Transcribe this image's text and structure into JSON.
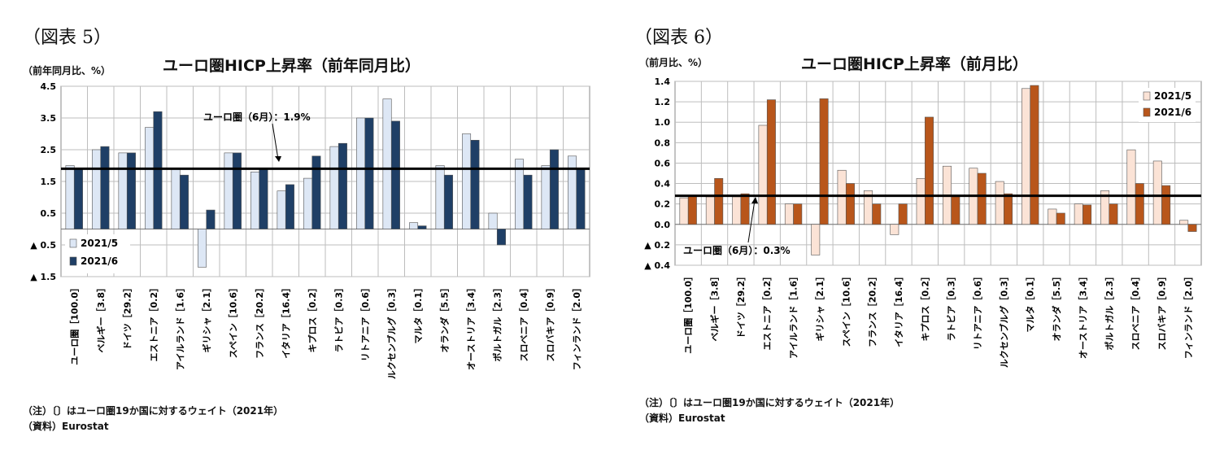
{
  "panels": [
    {
      "label": "（図表 5）",
      "unit": "（前年同月比、%）",
      "note1": "（注）〔〕はユーロ圏19か国に対するウェイト（2021年）",
      "note2": "（資料）Eurostat"
    },
    {
      "label": "（図表 6）",
      "unit": "（前月比、%）",
      "note1": "（注）〔〕はユーロ圏19か国に対するウェイト（2021年）",
      "note2": "（資料）Eurostat"
    }
  ],
  "chart_data": [
    {
      "type": "bar",
      "title": "ユーロ圏HICP上昇率（前年同月比）",
      "ylim": [
        -1.5,
        4.5
      ],
      "yticks": [
        4.5,
        3.5,
        2.5,
        1.5,
        0.5,
        -0.5,
        -1.5
      ],
      "ytick_labels": [
        "4.5",
        "3.5",
        "2.5",
        "1.5",
        "0.5",
        "▲ 0.5",
        "▲ 1.5"
      ],
      "grid": true,
      "legend_position": "bottom-left",
      "categories": [
        "ユーロ圏［100.0］",
        "ベルギー［3.8］",
        "ドイツ［29.2］",
        "エストニア［0.2］",
        "アイルランド［1.6］",
        "ギリシャ［2.1］",
        "スペイン［10.6］",
        "フランス［20.2］",
        "イタリア［16.4］",
        "キプロス［0.2］",
        "ラトビア［0.3］",
        "リトアニア［0.6］",
        "ルクセンブルグ［0.3］",
        "マルタ［0.1］",
        "オランダ［5.5］",
        "オーストリア［3.4］",
        "ポルトガル［2.3］",
        "スロベニア［0.4］",
        "スロバキア［0.9］",
        "フィンランド［2.0］"
      ],
      "series": [
        {
          "name": "2021/5",
          "color": "#dde7f5",
          "values": [
            2.0,
            2.5,
            2.4,
            3.2,
            1.9,
            -1.2,
            2.4,
            1.8,
            1.2,
            1.6,
            2.6,
            3.5,
            4.1,
            0.2,
            2.0,
            3.0,
            0.5,
            2.2,
            2.0,
            2.3
          ]
        },
        {
          "name": "2021/6",
          "color": "#1f3f66",
          "values": [
            1.9,
            2.6,
            2.4,
            3.7,
            1.7,
            0.6,
            2.4,
            1.9,
            1.4,
            2.3,
            2.7,
            3.5,
            3.4,
            0.1,
            1.7,
            2.8,
            -0.5,
            1.7,
            2.5,
            1.9
          ]
        }
      ],
      "reference": {
        "value": 1.9,
        "label": "ユーロ圏（6月）：1.9%"
      }
    },
    {
      "type": "bar",
      "title": "ユーロ圏HICP上昇率（前月比）",
      "ylim": [
        -0.4,
        1.4
      ],
      "yticks": [
        1.4,
        1.2,
        1.0,
        0.8,
        0.6,
        0.4,
        0.2,
        0.0,
        -0.2,
        -0.4
      ],
      "ytick_labels": [
        "1.4",
        "1.2",
        "1.0",
        "0.8",
        "0.6",
        "0.4",
        "0.2",
        "0.0",
        "▲ 0.2",
        "▲ 0.4"
      ],
      "grid": true,
      "legend_position": "top-right",
      "categories": [
        "ユーロ圏［100.0］",
        "ベルギー［3.8］",
        "ドイツ［29.2］",
        "エストニア［0.2］",
        "アイルランド［1.6］",
        "ギリシャ［2.1］",
        "スペイン［10.6］",
        "フランス［20.2］",
        "イタリア［16.4］",
        "キプロス［0.2］",
        "ラトビア［0.3］",
        "リトアニア［0.6］",
        "ルクセンブルグ［0.3］",
        "マルタ［0.1］",
        "オランダ［5.5］",
        "オーストリア［3.4］",
        "ポルトガル［2.3］",
        "スロベニア［0.4］",
        "スロバキア［0.9］",
        "フィンランド［2.0］"
      ],
      "series": [
        {
          "name": "2021/5",
          "color": "#fbe3d6",
          "values": [
            0.26,
            0.27,
            0.27,
            0.97,
            0.2,
            -0.3,
            0.53,
            0.33,
            -0.1,
            0.45,
            0.57,
            0.55,
            0.42,
            1.33,
            0.15,
            0.2,
            0.33,
            0.73,
            0.62,
            0.04
          ]
        },
        {
          "name": "2021/6",
          "color": "#b8561b",
          "values": [
            0.28,
            0.45,
            0.3,
            1.22,
            0.2,
            1.23,
            0.4,
            0.2,
            0.2,
            1.05,
            0.27,
            0.5,
            0.3,
            1.36,
            0.11,
            0.19,
            0.2,
            0.4,
            0.38,
            -0.07
          ]
        }
      ],
      "reference": {
        "value": 0.28,
        "label": "ユーロ圏（6月）：0.3%"
      }
    }
  ]
}
